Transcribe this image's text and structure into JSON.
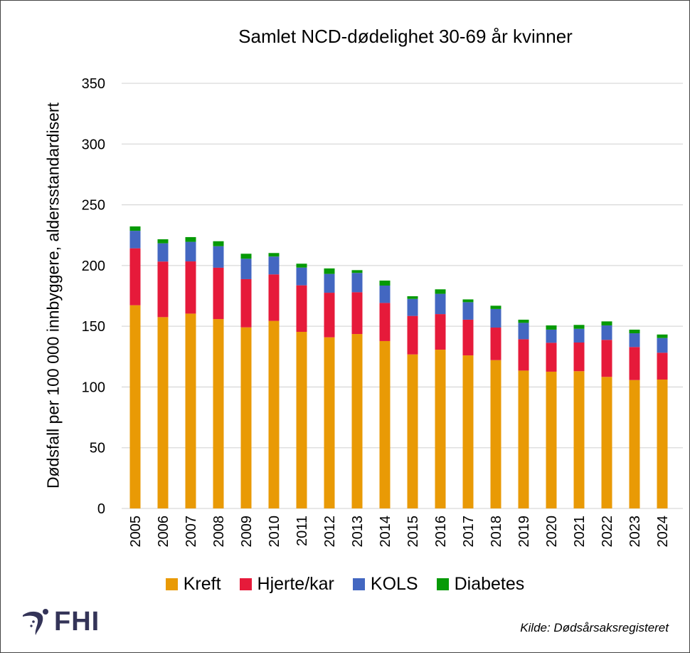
{
  "chart_data": {
    "type": "bar",
    "stacked": true,
    "title": "Samlet NCD-dødelighet 30-69 år kvinner",
    "ylabel": "Dødsfall per 100 000 innbyggere, aldersstandardisert",
    "xlabel": "",
    "ylim": [
      0,
      350
    ],
    "yticks": [
      0,
      50,
      100,
      150,
      200,
      250,
      300,
      350
    ],
    "grid": true,
    "legend_position": "bottom",
    "categories": [
      "2005",
      "2006",
      "2007",
      "2008",
      "2009",
      "2010",
      "2011",
      "2012",
      "2013",
      "2014",
      "2015",
      "2016",
      "2017",
      "2018",
      "2019",
      "2020",
      "2021",
      "2022",
      "2023",
      "2024"
    ],
    "series": [
      {
        "name": "Kreft",
        "color": "#E99A05",
        "values": [
          167.3,
          157.5,
          160.4,
          155.9,
          149.1,
          154.4,
          145.4,
          140.9,
          143.6,
          137.8,
          126.8,
          130.7,
          126.0,
          122.1,
          113.5,
          112.6,
          113.0,
          108.3,
          105.7,
          106.1
        ]
      },
      {
        "name": "Hjerte/kar",
        "color": "#E61A3A",
        "values": [
          46.9,
          45.8,
          43.0,
          42.3,
          39.7,
          38.3,
          38.3,
          36.7,
          34.4,
          31.4,
          31.7,
          29.3,
          29.4,
          26.8,
          25.8,
          23.8,
          23.6,
          30.5,
          27.2,
          22.1
        ]
      },
      {
        "name": "KOLS",
        "color": "#4367C1",
        "values": [
          14.4,
          15.0,
          16.1,
          17.7,
          16.8,
          14.7,
          14.6,
          15.5,
          15.9,
          14.3,
          14.0,
          16.7,
          14.4,
          15.3,
          13.5,
          10.8,
          11.3,
          11.9,
          11.3,
          12.1
        ]
      },
      {
        "name": "Diabetes",
        "color": "#069A06",
        "values": [
          3.6,
          3.3,
          3.9,
          4.1,
          4.1,
          2.9,
          3.2,
          4.5,
          2.3,
          4.1,
          2.2,
          3.7,
          2.3,
          2.7,
          2.6,
          3.5,
          3.2,
          3.3,
          3.0,
          2.9
        ]
      }
    ]
  },
  "source": "Kilde: Dødsårsaksregisteret",
  "logo": {
    "text": "FHI",
    "color": "#343458"
  }
}
